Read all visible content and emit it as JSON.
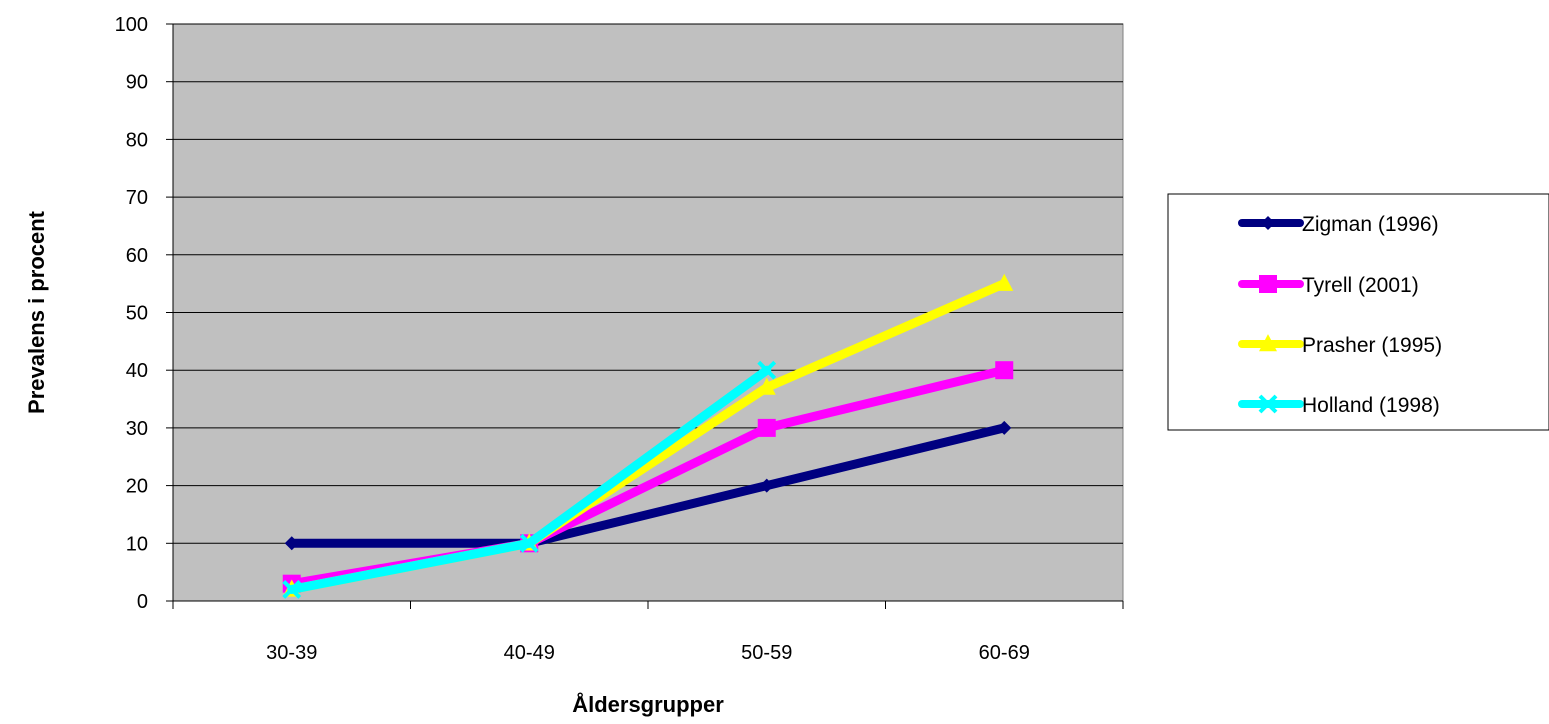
{
  "chart_data": {
    "type": "line",
    "title": "",
    "xlabel": "Åldersgrupper",
    "ylabel": "Prevalens i procent",
    "categories": [
      "30-39",
      "40-49",
      "50-59",
      "60-69"
    ],
    "ylim": [
      0,
      100
    ],
    "yticks": [
      "0",
      "10",
      "20",
      "30",
      "40",
      "50",
      "60",
      "70",
      "80",
      "90",
      "100"
    ],
    "grid": true,
    "plot_background": "#c0c0c0",
    "legend_position": "right",
    "series": [
      {
        "name": "Zigman (1996)",
        "color": "#000080",
        "marker": "diamond",
        "values": [
          10,
          10,
          20,
          30
        ]
      },
      {
        "name": "Tyrell (2001)",
        "color": "#ff00ff",
        "marker": "square",
        "values": [
          3,
          10,
          30,
          40
        ]
      },
      {
        "name": "Prasher (1995)",
        "color": "#ffff00",
        "marker": "triangle",
        "values": [
          2,
          10,
          37,
          55
        ]
      },
      {
        "name": "Holland (1998)",
        "color": "#00ffff",
        "marker": "x",
        "values": [
          2,
          10,
          40,
          null
        ]
      }
    ]
  }
}
